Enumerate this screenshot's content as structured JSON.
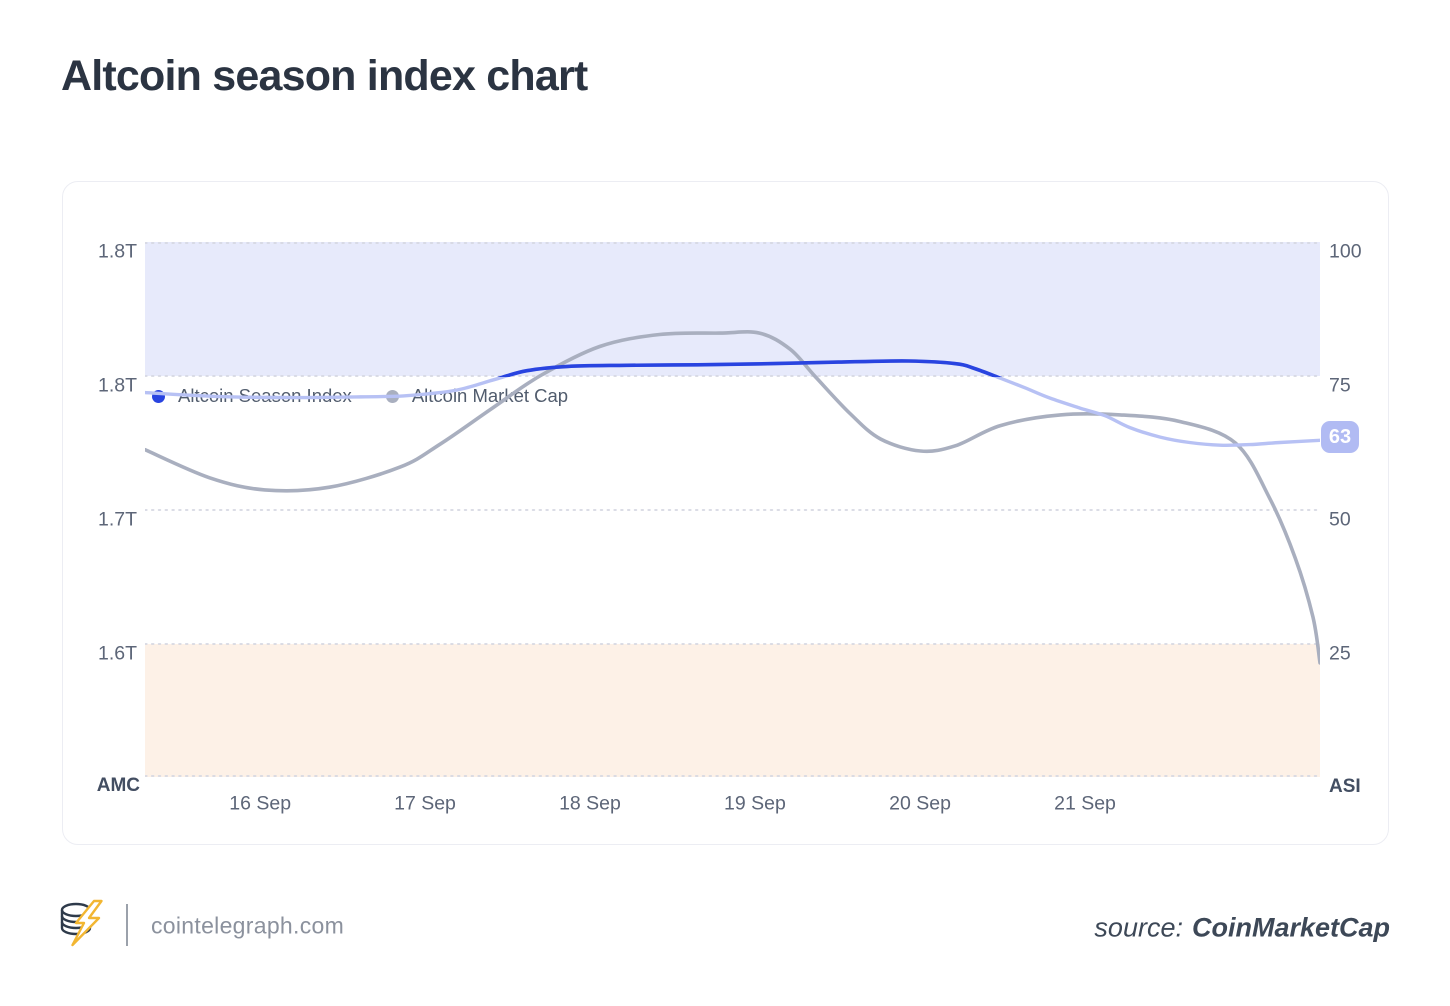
{
  "page": {
    "title": "Altcoin season index chart"
  },
  "legend": [
    {
      "label": "Altcoin Season Index",
      "color": "#2944e0"
    },
    {
      "label": "Altcoin Market Cap",
      "color": "#a9afbf"
    }
  ],
  "chart_data": {
    "type": "line",
    "title": "Altcoin season index chart",
    "left_axis": {
      "label": "AMC",
      "tick_labels": [
        "1.8T",
        "1.8T",
        "1.7T",
        "1.6T"
      ]
    },
    "right_axis": {
      "label": "ASI",
      "ticks": [
        "100",
        "75",
        "50",
        "25"
      ],
      "range": [
        0,
        100
      ]
    },
    "x_ticks": [
      {
        "label": "16 Sep",
        "t": 0.098
      },
      {
        "label": "17 Sep",
        "t": 0.2383
      },
      {
        "label": "18 Sep",
        "t": 0.3787
      },
      {
        "label": "19 Sep",
        "t": 0.5191
      },
      {
        "label": "20 Sep",
        "t": 0.6596
      },
      {
        "label": "21 Sep",
        "t": 0.8
      }
    ],
    "bands": [
      {
        "name": "altcoin-season-zone",
        "axis": "right",
        "from": 75,
        "to": 100,
        "color": "#e7eafb"
      },
      {
        "name": "bitcoin-season-zone",
        "axis": "right",
        "from": 0,
        "to": 25,
        "color": "#fdf1e7"
      }
    ],
    "grid": {
      "dotted": true,
      "color": "#d6d8e2"
    },
    "current_value_badge": {
      "value": "63",
      "color": "#b1bbf3"
    },
    "series": [
      {
        "name": "Altcoin Season Index",
        "axis": "right",
        "color_in_band": "#2944e0",
        "color": "#b7c1f4",
        "points": [
          [
            0.0,
            71.9
          ],
          [
            0.06,
            71.2
          ],
          [
            0.12,
            71.0
          ],
          [
            0.18,
            71.1
          ],
          [
            0.22,
            71.3
          ],
          [
            0.251,
            71.9
          ],
          [
            0.27,
            72.6
          ],
          [
            0.3,
            74.5
          ],
          [
            0.325,
            76.0
          ],
          [
            0.36,
            76.8
          ],
          [
            0.41,
            77.0
          ],
          [
            0.47,
            77.1
          ],
          [
            0.53,
            77.3
          ],
          [
            0.59,
            77.6
          ],
          [
            0.65,
            77.8
          ],
          [
            0.69,
            77.3
          ],
          [
            0.706,
            76.4
          ],
          [
            0.728,
            74.6
          ],
          [
            0.75,
            72.7
          ],
          [
            0.77,
            70.9
          ],
          [
            0.796,
            69.0
          ],
          [
            0.817,
            67.6
          ],
          [
            0.838,
            65.4
          ],
          [
            0.864,
            63.6
          ],
          [
            0.889,
            62.6
          ],
          [
            0.915,
            62.1
          ],
          [
            0.94,
            62.2
          ],
          [
            0.966,
            62.6
          ],
          [
            1.0,
            63.0
          ]
        ]
      },
      {
        "name": "Altcoin Market Cap",
        "axis": "left",
        "unit": "T",
        "color": "#a9afbf",
        "points": [
          [
            0.0,
            1.745
          ],
          [
            0.055,
            1.724
          ],
          [
            0.102,
            1.715
          ],
          [
            0.157,
            1.717
          ],
          [
            0.217,
            1.732
          ],
          [
            0.251,
            1.749
          ],
          [
            0.294,
            1.775
          ],
          [
            0.336,
            1.8
          ],
          [
            0.387,
            1.822
          ],
          [
            0.438,
            1.831
          ],
          [
            0.489,
            1.832
          ],
          [
            0.523,
            1.832
          ],
          [
            0.549,
            1.82
          ],
          [
            0.57,
            1.8
          ],
          [
            0.6,
            1.772
          ],
          [
            0.626,
            1.753
          ],
          [
            0.66,
            1.744
          ],
          [
            0.69,
            1.748
          ],
          [
            0.728,
            1.763
          ],
          [
            0.779,
            1.771
          ],
          [
            0.83,
            1.771
          ],
          [
            0.881,
            1.766
          ],
          [
            0.928,
            1.75
          ],
          [
            0.957,
            1.709
          ],
          [
            0.979,
            1.664
          ],
          [
            0.994,
            1.62
          ],
          [
            1.0,
            1.586
          ]
        ]
      }
    ]
  },
  "footer": {
    "brand": "cointelegraph.com",
    "source_prefix": "source:",
    "source_name": "CoinMarketCap"
  }
}
